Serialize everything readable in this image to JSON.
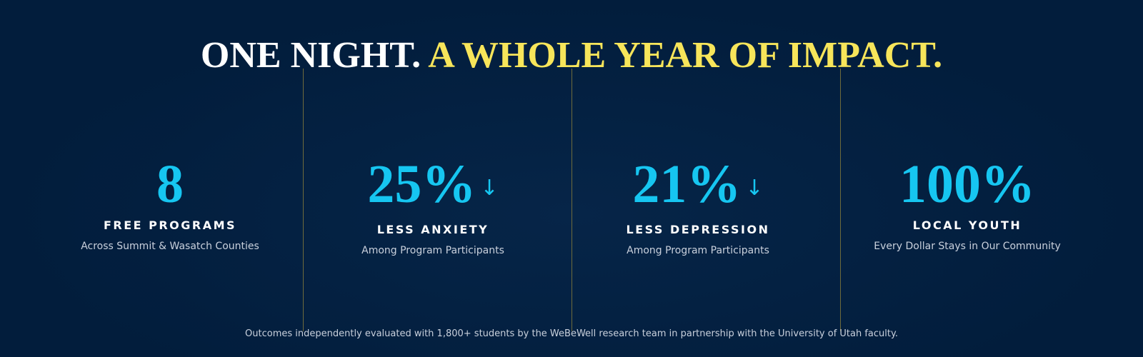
{
  "header": {
    "title_white": "ONE NIGHT.",
    "title_yellow": "A WHOLE YEAR OF IMPACT."
  },
  "stats": [
    {
      "value": "8",
      "label": "FREE PROGRAMS",
      "sub": "Across Summit & Wasatch Counties"
    },
    {
      "value": "25%",
      "arrow": "↓",
      "label": "LESS ANXIETY",
      "sub": "Among Program Participants"
    },
    {
      "value": "21%",
      "arrow": "↓",
      "label": "LESS DEPRESSION",
      "sub": "Among Program Participants"
    },
    {
      "value": "100%",
      "label": "LOCAL YOUTH",
      "sub": "Every Dollar Stays in Our Community"
    }
  ],
  "footer": {
    "note": "Outcomes independently evaluated with 1,800+ students by the WeBeWell research team in partnership with the University of Utah faculty."
  }
}
